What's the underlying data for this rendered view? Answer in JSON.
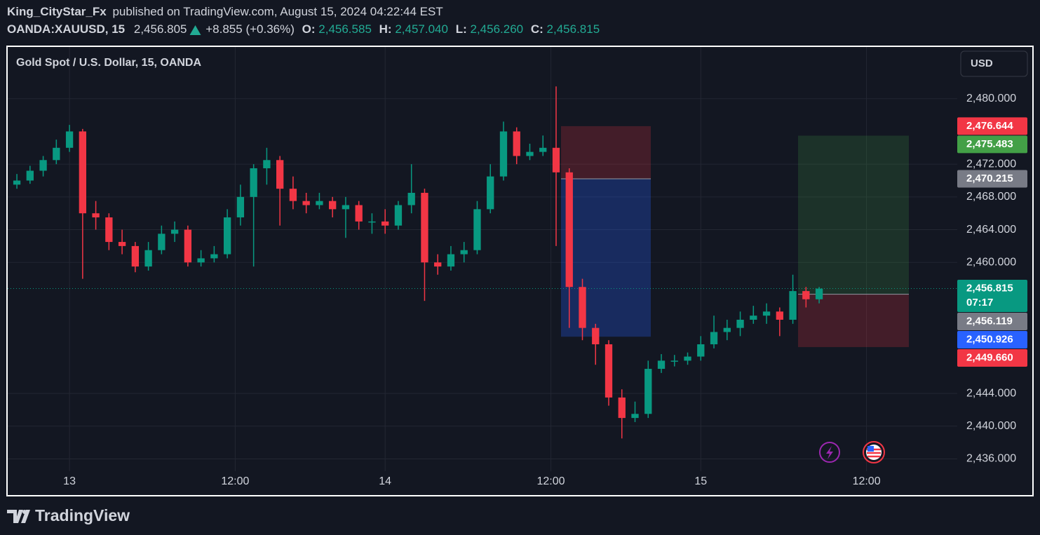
{
  "header": {
    "author": "King_CityStar_Fx",
    "published": "published on TradingView.com, August 15, 2024 04:22:44 EST",
    "symbol": "OANDA:XAUUSD, 15",
    "last": "2,456.805",
    "change": "+8.855 (+0.36%)",
    "ohlc": [
      {
        "label": "O:",
        "value": "2,456.585"
      },
      {
        "label": "H:",
        "value": "2,457.040"
      },
      {
        "label": "L:",
        "value": "2,456.260"
      },
      {
        "label": "C:",
        "value": "2,456.815"
      }
    ]
  },
  "currency_button": "USD",
  "footer": {
    "brand": "TradingView"
  },
  "chart_data": {
    "type": "candlestick",
    "title": "Gold Spot / U.S. Dollar, 15, OANDA",
    "up_color": "#089981",
    "down_color": "#f23645",
    "grid": true,
    "xlim": [
      -4.75,
      67.5
    ],
    "xticks": [
      {
        "value": 0,
        "label": "13"
      },
      {
        "value": 12.6,
        "label": "12:00"
      },
      {
        "value": 24,
        "label": "14"
      },
      {
        "value": 36.6,
        "label": "12:00"
      },
      {
        "value": 48,
        "label": "15"
      },
      {
        "value": 60.6,
        "label": "12:00"
      }
    ],
    "ylim": [
      2434.5,
      2486.4
    ],
    "yticks": [
      {
        "value": 2480,
        "label": "2,480.000"
      },
      {
        "value": 2472,
        "label": "2,472.000"
      },
      {
        "value": 2468,
        "label": "2,468.000"
      },
      {
        "value": 2464,
        "label": "2,464.000"
      },
      {
        "value": 2460,
        "label": "2,460.000"
      },
      {
        "value": 2444,
        "label": "2,444.000"
      },
      {
        "value": 2440,
        "label": "2,440.000"
      },
      {
        "value": 2436,
        "label": "2,436.000"
      }
    ],
    "x": [
      -4,
      -3,
      -2,
      -1,
      0,
      1,
      2,
      3,
      4,
      5,
      6,
      7,
      8,
      9,
      10,
      11,
      12,
      13,
      14,
      15,
      16,
      17,
      18,
      19,
      20,
      21,
      22,
      23,
      24,
      25,
      26,
      27,
      28,
      29,
      30,
      31,
      32,
      33,
      34,
      35,
      36,
      37,
      38,
      39,
      40,
      41,
      42,
      43,
      44,
      45,
      46,
      47,
      48,
      49,
      50,
      51,
      52,
      53,
      54,
      55,
      56,
      57
    ],
    "open": [
      2469.5,
      2470.0,
      2471.2,
      2472.5,
      2474.0,
      2476.0,
      2466.0,
      2465.5,
      2462.5,
      2462.0,
      2459.5,
      2461.5,
      2463.5,
      2464.0,
      2460.0,
      2460.5,
      2461.0,
      2465.5,
      2468.0,
      2471.5,
      2472.5,
      2469.0,
      2467.5,
      2467.0,
      2467.5,
      2466.5,
      2467.0,
      2465.0,
      2465.0,
      2464.5,
      2467.0,
      2468.5,
      2460.0,
      2459.5,
      2461.0,
      2461.5,
      2466.5,
      2470.5,
      2476.0,
      2473.0,
      2473.5,
      2474.0,
      2471.0,
      2457.0,
      2452.0,
      2450.0,
      2443.5,
      2441.0,
      2441.5,
      2447.0,
      2448.0,
      2448.0,
      2448.5,
      2450.0,
      2451.5,
      2452.0,
      2453.0,
      2453.5,
      2454.0,
      2453.0,
      2456.5,
      2455.5
    ],
    "high": [
      2470.8,
      2471.8,
      2473.0,
      2475.0,
      2476.8,
      2476.3,
      2467.5,
      2466.0,
      2464.0,
      2462.5,
      2462.5,
      2464.5,
      2465.0,
      2464.5,
      2461.5,
      2462.0,
      2466.5,
      2469.5,
      2472.0,
      2474.0,
      2473.0,
      2470.5,
      2468.5,
      2468.5,
      2468.0,
      2468.0,
      2467.5,
      2466.0,
      2466.5,
      2467.5,
      2472.0,
      2469.0,
      2461.0,
      2462.0,
      2462.5,
      2467.5,
      2472.0,
      2477.2,
      2476.5,
      2474.5,
      2475.5,
      2481.5,
      2471.5,
      2458.0,
      2452.5,
      2450.5,
      2444.5,
      2443.0,
      2448.0,
      2448.8,
      2448.7,
      2449.0,
      2451.0,
      2453.5,
      2453.0,
      2454.0,
      2454.7,
      2455.0,
      2454.5,
      2458.5,
      2457.0,
      2457.0
    ],
    "low": [
      2469.0,
      2469.6,
      2470.5,
      2472.0,
      2473.5,
      2458.0,
      2464.0,
      2461.5,
      2461.0,
      2458.8,
      2459.0,
      2461.0,
      2462.5,
      2459.5,
      2459.5,
      2460.0,
      2460.5,
      2464.5,
      2459.5,
      2469.5,
      2464.5,
      2466.5,
      2466.0,
      2466.5,
      2465.5,
      2463.0,
      2464.0,
      2463.5,
      2463.5,
      2464.0,
      2466.0,
      2455.3,
      2458.5,
      2459.0,
      2460.0,
      2461.0,
      2466.0,
      2470.0,
      2472.0,
      2472.5,
      2473.0,
      2462.0,
      2452.0,
      2450.5,
      2447.5,
      2442.5,
      2438.5,
      2440.5,
      2441.0,
      2446.5,
      2447.3,
      2447.5,
      2448.0,
      2449.5,
      2450.5,
      2451.0,
      2452.5,
      2452.5,
      2451.0,
      2452.5,
      2454.5,
      2455.0
    ],
    "close": [
      2470.0,
      2471.2,
      2472.5,
      2474.0,
      2476.0,
      2466.0,
      2465.5,
      2462.5,
      2462.0,
      2459.5,
      2461.5,
      2463.5,
      2464.0,
      2460.0,
      2460.5,
      2461.0,
      2465.5,
      2468.0,
      2471.5,
      2472.5,
      2469.0,
      2467.5,
      2467.0,
      2467.5,
      2466.5,
      2467.0,
      2465.0,
      2465.0,
      2464.5,
      2467.0,
      2468.5,
      2460.0,
      2459.5,
      2461.0,
      2461.5,
      2466.5,
      2470.5,
      2476.0,
      2473.0,
      2473.5,
      2474.0,
      2471.0,
      2457.0,
      2452.0,
      2450.0,
      2443.5,
      2441.0,
      2441.5,
      2447.0,
      2448.0,
      2448.0,
      2448.5,
      2450.0,
      2451.5,
      2452.0,
      2453.0,
      2453.5,
      2454.0,
      2453.0,
      2456.5,
      2455.5,
      2456.8
    ],
    "price_labels": [
      {
        "value": 2476.644,
        "label": "2,476.644",
        "color": "#f23645"
      },
      {
        "value": 2475.483,
        "label": "2,475.483",
        "color": "#43a047"
      },
      {
        "value": 2470.215,
        "label": "2,470.215",
        "color": "#787b86"
      },
      {
        "value": 2456.815,
        "label": "2,456.815",
        "color": "#089981",
        "countdown": "07:17"
      },
      {
        "value": 2456.119,
        "label": "2,456.119",
        "color": "#787b86"
      },
      {
        "value": 2450.926,
        "label": "2,450.926",
        "color": "#2962ff"
      },
      {
        "value": 2449.66,
        "label": "2,449.660",
        "color": "#f23645"
      }
    ]
  }
}
